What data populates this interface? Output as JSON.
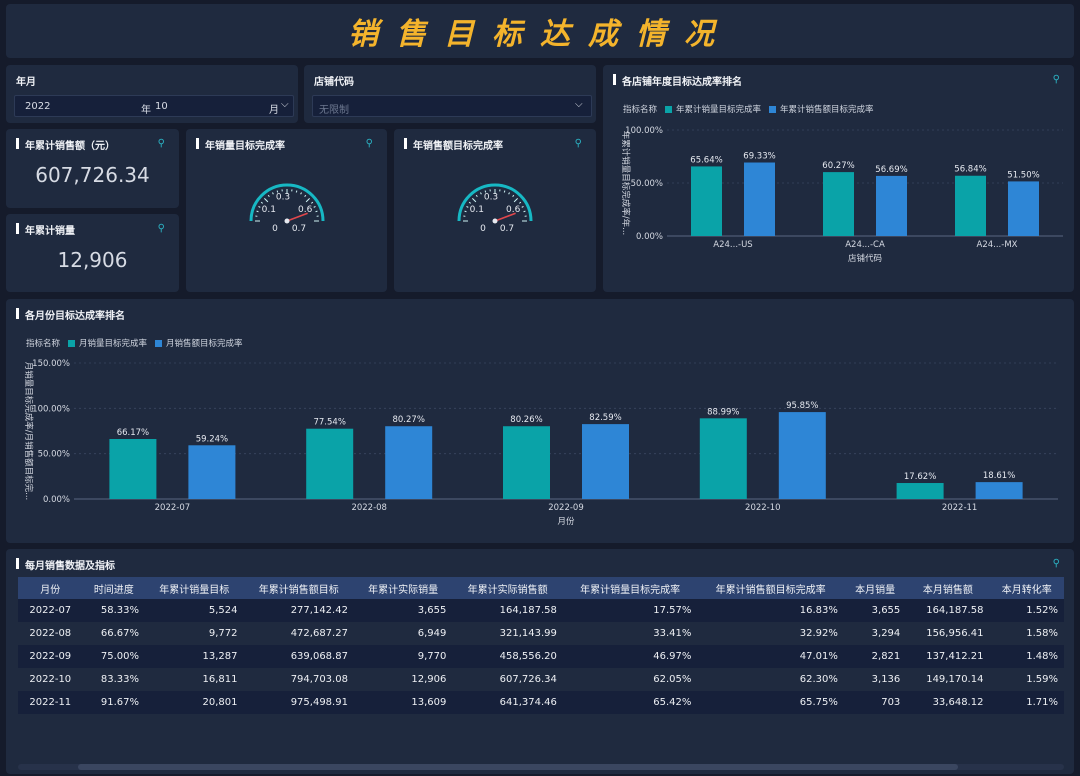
{
  "header": {
    "title": "销售目标达成情况"
  },
  "filters": {
    "year_month": {
      "label": "年月",
      "year": "2022",
      "year_unit": "年",
      "month": "10",
      "month_unit": "月"
    },
    "store": {
      "label": "店铺代码",
      "placeholder": "无限制"
    }
  },
  "kpis": {
    "ytd_sales_amount": {
      "label": "年累计销售额（元）",
      "value": "607,726.34"
    },
    "ytd_sales_qty": {
      "label": "年累计销量",
      "value": "12,906"
    }
  },
  "gauges": [
    {
      "label": "年销量目标完成率",
      "ticks": [
        "0",
        "0.1",
        "0.3",
        "0.6",
        "0.7"
      ],
      "value": 0.62
    },
    {
      "label": "年销售额目标完成率",
      "ticks": [
        "0",
        "0.1",
        "0.3",
        "0.6",
        "0.7"
      ],
      "value": 0.62
    }
  ],
  "colors": {
    "teal": "#0aa3a8",
    "blue": "#2e86d6",
    "title": "#f4b42c",
    "panel": "#1f2a3f"
  },
  "store_chart": {
    "title": "各店铺年度目标达成率排名",
    "legend_title": "指标名称",
    "series_names": [
      "年累计销量目标完成率",
      "年累计销售额目标完成率"
    ],
    "xlabel": "店铺代码",
    "ylabel": "年累计销量目标完成率/年..."
  },
  "month_chart": {
    "title": "各月份目标达成率排名",
    "legend_title": "指标名称",
    "series_names": [
      "月销量目标完成率",
      "月销售额目标完成率"
    ],
    "xlabel": "月份",
    "ylabel": "月销量目标完成率/月销售额目标完..."
  },
  "chart_data": [
    {
      "type": "bar",
      "title": "各店铺年度目标达成率排名",
      "categories": [
        "A24...-US",
        "A24...-CA",
        "A24...-MX"
      ],
      "series": [
        {
          "name": "年累计销量目标完成率",
          "values": [
            65.64,
            60.27,
            56.84
          ],
          "labels": [
            "65.64%",
            "60.27%",
            "56.84%"
          ]
        },
        {
          "name": "年累计销售额目标完成率",
          "values": [
            69.33,
            56.69,
            51.5
          ],
          "labels": [
            "69.33%",
            "56.69%",
            "51.50%"
          ]
        }
      ],
      "yticks": [
        "0.00%",
        "50.00%",
        "100.00%"
      ],
      "ylim": [
        0,
        100
      ],
      "xlabel": "店铺代码",
      "grid": true
    },
    {
      "type": "bar",
      "title": "各月份目标达成率排名",
      "categories": [
        "2022-07",
        "2022-08",
        "2022-09",
        "2022-10",
        "2022-11"
      ],
      "series": [
        {
          "name": "月销量目标完成率",
          "values": [
            66.17,
            77.54,
            80.26,
            88.99,
            17.62
          ],
          "labels": [
            "66.17%",
            "77.54%",
            "80.26%",
            "88.99%",
            "17.62%"
          ]
        },
        {
          "name": "月销售额目标完成率",
          "values": [
            59.24,
            80.27,
            82.59,
            95.85,
            18.61
          ],
          "labels": [
            "59.24%",
            "80.27%",
            "82.59%",
            "95.85%",
            "18.61%"
          ]
        }
      ],
      "yticks": [
        "0.00%",
        "50.00%",
        "100.00%",
        "150.00%"
      ],
      "ylim": [
        0,
        150
      ],
      "xlabel": "月份",
      "grid": true
    }
  ],
  "table": {
    "title": "每月销售数据及指标",
    "columns": [
      "月份",
      "时间进度",
      "年累计销量目标",
      "年累计销售额目标",
      "年累计实际销量",
      "年累计实际销售额",
      "年累计销量目标完成率",
      "年累计销售额目标完成率",
      "本月销量",
      "本月销售额",
      "本月转化率"
    ],
    "rows": [
      [
        "2022-07",
        "58.33%",
        "5,524",
        "277,142.42",
        "3,655",
        "164,187.58",
        "17.57%",
        "16.83%",
        "3,655",
        "164,187.58",
        "1.52%"
      ],
      [
        "2022-08",
        "66.67%",
        "9,772",
        "472,687.27",
        "6,949",
        "321,143.99",
        "33.41%",
        "32.92%",
        "3,294",
        "156,956.41",
        "1.58%"
      ],
      [
        "2022-09",
        "75.00%",
        "13,287",
        "639,068.87",
        "9,770",
        "458,556.20",
        "46.97%",
        "47.01%",
        "2,821",
        "137,412.21",
        "1.48%"
      ],
      [
        "2022-10",
        "83.33%",
        "16,811",
        "794,703.08",
        "12,906",
        "607,726.34",
        "62.05%",
        "62.30%",
        "3,136",
        "149,170.14",
        "1.59%"
      ],
      [
        "2022-11",
        "91.67%",
        "20,801",
        "975,498.91",
        "13,609",
        "641,374.46",
        "65.42%",
        "65.75%",
        "703",
        "33,648.12",
        "1.71%"
      ]
    ]
  },
  "icons": {
    "corner": "filter-export-icon",
    "chevron": "chevron-down-icon"
  }
}
